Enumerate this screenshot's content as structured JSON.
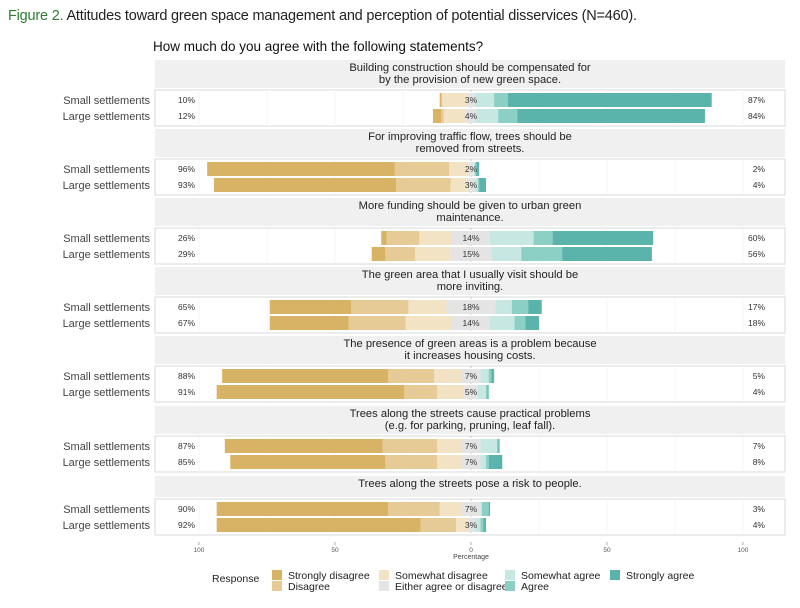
{
  "caption": {
    "figure_label": "Figure 2.",
    "text": "Attitudes toward green space management and perception of potential disservices (N=460)."
  },
  "chart_data": {
    "type": "bar",
    "subtype": "diverging-stacked-likert",
    "title": "How much do you agree with the following statements?",
    "xlabel": "Percentage",
    "ylabel": "",
    "xlim": [
      -100,
      100
    ],
    "x_ticks": [
      -100,
      -50,
      0,
      50,
      100
    ],
    "x_tick_labels": [
      "100",
      "50",
      "0",
      "50",
      "100"
    ],
    "grid": true,
    "legend": {
      "title": "Response",
      "placement": "bottom",
      "entries": [
        {
          "label": "Strongly disagree",
          "color": "#d8b365"
        },
        {
          "label": "Disagree",
          "color": "#e6cb96"
        },
        {
          "label": "Somewhat disagree",
          "color": "#f3e3c5"
        },
        {
          "label": "Either agree or disagree",
          "color": "#e4e4e4"
        },
        {
          "label": "Somewhat agree",
          "color": "#c7e7e3"
        },
        {
          "label": "Agree",
          "color": "#8ccfc4"
        },
        {
          "label": "Strongly agree",
          "color": "#5ab4ac"
        }
      ]
    },
    "response_levels": [
      "Strongly disagree",
      "Disagree",
      "Somewhat disagree",
      "Either agree or disagree",
      "Somewhat agree",
      "Agree",
      "Strongly agree"
    ],
    "groups": [
      "Small settlements",
      "Large settlements"
    ],
    "panels": [
      {
        "statement_lines": [
          "Building construction should be compensated for",
          "by the provision of new green space."
        ],
        "rows": [
          {
            "group": "Small settlements",
            "values": [
              0.5,
              0.5,
              9,
              3,
              7,
              5,
              75
            ],
            "left_label": "10%",
            "center_label": "3%",
            "right_label": "87%"
          },
          {
            "group": "Large settlements",
            "values": [
              3,
              1,
              8,
              4,
              8,
              7,
              69
            ],
            "left_label": "12%",
            "center_label": "4%",
            "right_label": "84%"
          }
        ]
      },
      {
        "statement_lines": [
          "For improving traffic flow, trees should be",
          "removed from streets."
        ],
        "rows": [
          {
            "group": "Small settlements",
            "values": [
              69,
              20,
              7,
              2,
              0.5,
              0.5,
              1
            ],
            "left_label": "96%",
            "center_label": "2%",
            "right_label": "2%"
          },
          {
            "group": "Large settlements",
            "values": [
              67,
              20,
              6,
              3,
              1,
              0.5,
              2.5
            ],
            "left_label": "93%",
            "center_label": "3%",
            "right_label": "4%"
          }
        ]
      },
      {
        "statement_lines": [
          "More funding should be given to urban green",
          "maintenance."
        ],
        "rows": [
          {
            "group": "Small settlements",
            "values": [
              2,
              12,
              12,
              14,
              16,
              7,
              37
            ],
            "left_label": "26%",
            "center_label": "14%",
            "right_label": "60%"
          },
          {
            "group": "Large settlements",
            "values": [
              5,
              11,
              13,
              15,
              11,
              15,
              33
            ],
            "left_label": "29%",
            "center_label": "15%",
            "right_label": "56%"
          }
        ]
      },
      {
        "statement_lines": [
          "The green area that I usually visit should be",
          "more inviting."
        ],
        "rows": [
          {
            "group": "Small settlements",
            "values": [
              30,
              21,
              14,
              18,
              6,
              6,
              5
            ],
            "left_label": "65%",
            "center_label": "18%",
            "right_label": "17%"
          },
          {
            "group": "Large settlements",
            "values": [
              29,
              21,
              17,
              14,
              9,
              4,
              5
            ],
            "left_label": "67%",
            "center_label": "14%",
            "right_label": "18%"
          }
        ]
      },
      {
        "statement_lines": [
          "The presence of green areas is a problem because",
          "it increases housing costs."
        ],
        "rows": [
          {
            "group": "Small settlements",
            "values": [
              61,
              17,
              10,
              7,
              3,
              1,
              1
            ],
            "left_label": "88%",
            "center_label": "7%",
            "right_label": "5%"
          },
          {
            "group": "Large settlements",
            "values": [
              69,
              12,
              10,
              5,
              3,
              0.5,
              0.5
            ],
            "left_label": "91%",
            "center_label": "5%",
            "right_label": "4%"
          }
        ]
      },
      {
        "statement_lines": [
          "Trees along the streets cause practical problems",
          "(e.g. for parking, pruning, leaf fall)."
        ],
        "rows": [
          {
            "group": "Small settlements",
            "values": [
              58,
              20,
              9,
              7,
              6,
              0.5,
              0.5
            ],
            "left_label": "87%",
            "center_label": "7%",
            "right_label": "7%"
          },
          {
            "group": "Large settlements",
            "values": [
              57,
              19,
              9,
              7,
              2,
              1,
              5
            ],
            "left_label": "85%",
            "center_label": "7%",
            "right_label": "8%"
          }
        ]
      },
      {
        "statement_lines": [
          "Trees along the streets pose a risk to people."
        ],
        "rows": [
          {
            "group": "Small settlements",
            "values": [
              63,
              19,
              8,
              7,
              0.5,
              2.5,
              0.5
            ],
            "left_label": "90%",
            "center_label": "7%",
            "right_label": "3%"
          },
          {
            "group": "Large settlements",
            "values": [
              75,
              13,
              4,
              3,
              2,
              1,
              1
            ],
            "left_label": "92%",
            "center_label": "3%",
            "right_label": "4%"
          }
        ]
      }
    ]
  }
}
